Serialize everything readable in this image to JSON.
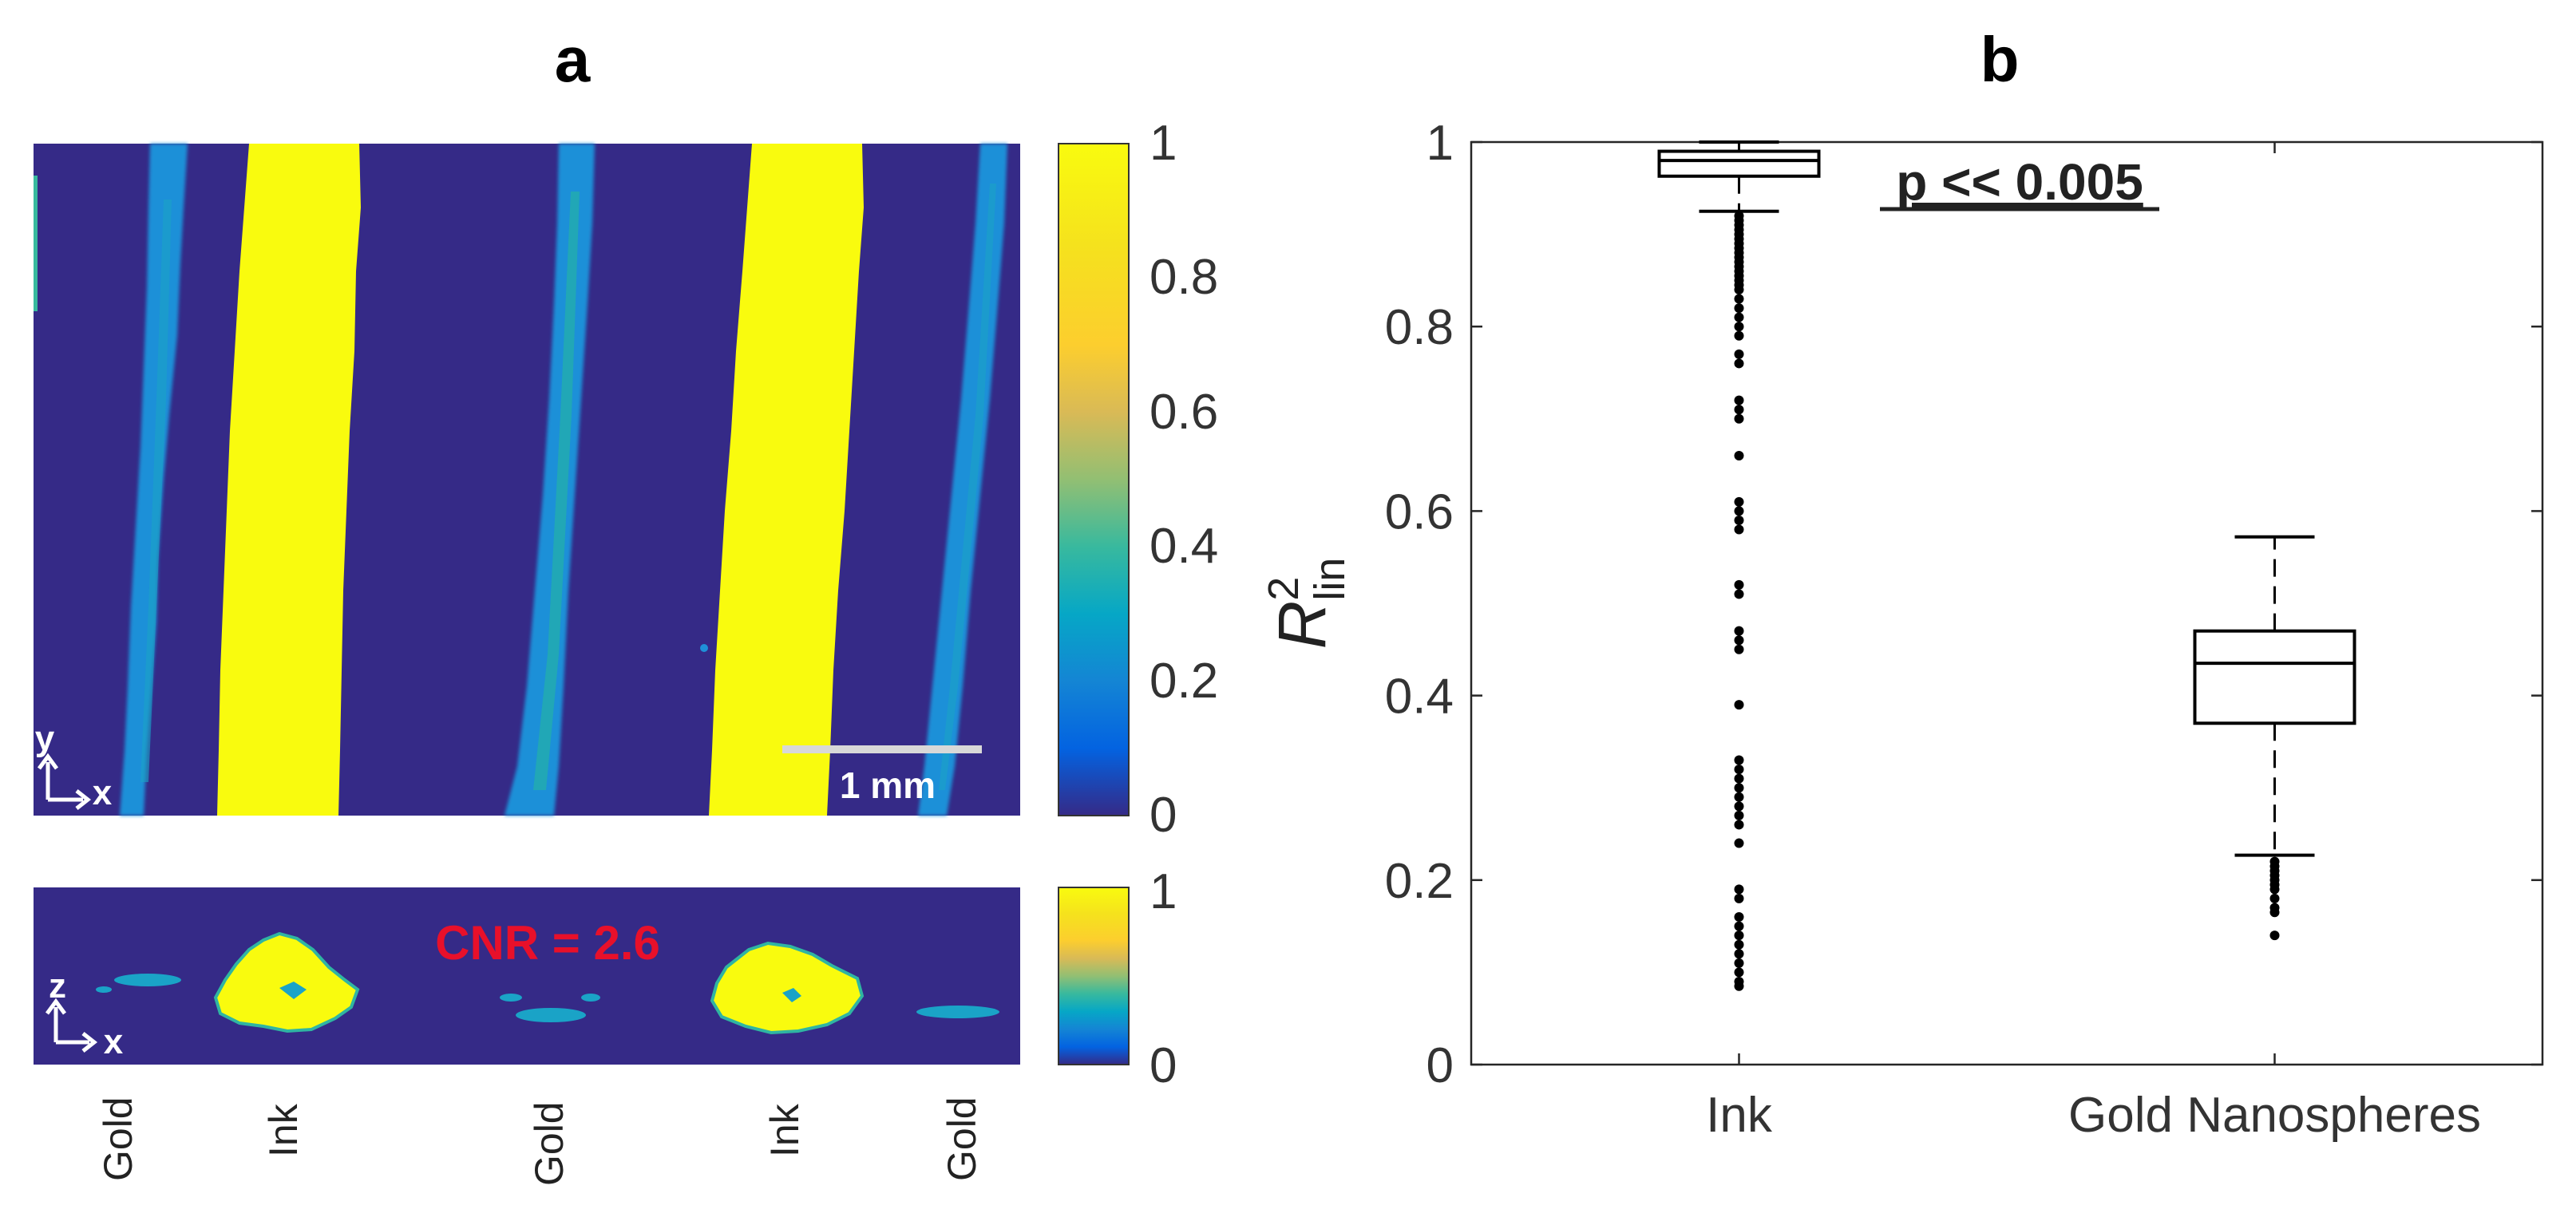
{
  "panel_a": {
    "label": "a",
    "top_map": {
      "axis_indicator": {
        "vertical": "y",
        "horizontal": "x"
      },
      "scale_bar_label": "1 mm",
      "colorbar": {
        "ticks": [
          "1",
          "0.8",
          "0.6",
          "0.4",
          "0.2",
          "0"
        ],
        "range": [
          0,
          1
        ],
        "colormap": "parula"
      }
    },
    "bottom_map": {
      "axis_indicator": {
        "vertical": "z",
        "horizontal": "x"
      },
      "annotation": "CNR = 2.6",
      "annotation_color": "#e8102a",
      "colorbar": {
        "ticks": [
          "1",
          "0"
        ],
        "range": [
          0,
          1
        ],
        "colormap": "parula"
      }
    },
    "column_labels": [
      "Gold",
      "Ink",
      "Gold",
      "Ink",
      "Gold"
    ],
    "colors": {
      "background": "#352a87",
      "ink": "#f9fb0e",
      "gold": "#2c8ce0"
    }
  },
  "panel_b": {
    "label": "b",
    "annotation": "p << 0.005",
    "chart_data": {
      "type": "boxplot",
      "categories": [
        "Ink",
        "Gold Nanospheres"
      ],
      "ylabel_main": "R",
      "ylabel_sup": "2",
      "ylabel_sub": "lin",
      "ylim": [
        0,
        1
      ],
      "yticks": [
        0,
        0.2,
        0.4,
        0.6,
        0.8,
        1
      ],
      "ytick_labels": [
        "0",
        "0.2",
        "0.4",
        "0.6",
        "0.8",
        "1"
      ],
      "grid": false,
      "boxes": [
        {
          "category": "Ink",
          "whisker_low": 0.925,
          "q1": 0.963,
          "median": 0.98,
          "q3": 0.99,
          "whisker_high": 1.0,
          "outliers": [
            0.92,
            0.915,
            0.91,
            0.905,
            0.9,
            0.895,
            0.89,
            0.885,
            0.88,
            0.875,
            0.87,
            0.865,
            0.86,
            0.855,
            0.85,
            0.845,
            0.84,
            0.83,
            0.82,
            0.81,
            0.8,
            0.79,
            0.77,
            0.76,
            0.72,
            0.71,
            0.7,
            0.66,
            0.61,
            0.6,
            0.59,
            0.58,
            0.52,
            0.51,
            0.47,
            0.46,
            0.45,
            0.39,
            0.33,
            0.32,
            0.31,
            0.3,
            0.29,
            0.28,
            0.27,
            0.26,
            0.24,
            0.19,
            0.18,
            0.16,
            0.15,
            0.14,
            0.13,
            0.12,
            0.11,
            0.1,
            0.09,
            0.085
          ]
        },
        {
          "category": "Gold Nanospheres",
          "whisker_low": 0.227,
          "q1": 0.37,
          "median": 0.435,
          "q3": 0.47,
          "whisker_high": 0.572,
          "outliers": [
            0.22,
            0.215,
            0.21,
            0.205,
            0.2,
            0.195,
            0.19,
            0.18,
            0.17,
            0.165,
            0.14
          ]
        }
      ]
    }
  }
}
